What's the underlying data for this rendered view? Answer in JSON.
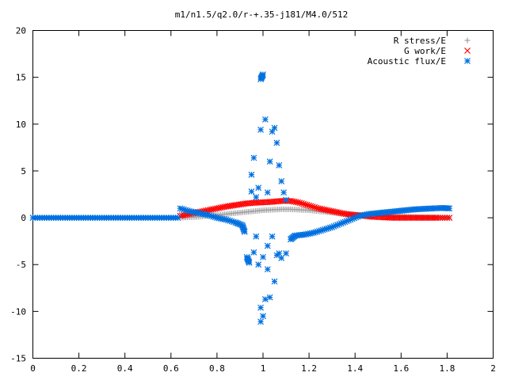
{
  "chart_data": {
    "type": "scatter",
    "title": "m1/n1.5/q2.0/r-+.35-j181/M4.0/512",
    "xlabel": "",
    "ylabel": "",
    "xlim": [
      0,
      2
    ],
    "ylim": [
      -15,
      20
    ],
    "x_ticks": [
      "0",
      "0.2",
      "0.4",
      "0.6",
      "0.8",
      "1",
      "1.2",
      "1.4",
      "1.6",
      "1.8",
      "2"
    ],
    "y_ticks": [
      "-15",
      "-10",
      "-5",
      "0",
      "5",
      "10",
      "15",
      "20"
    ],
    "legend_position": "top-right",
    "grid": false,
    "series": [
      {
        "name": "R stress/E",
        "marker": "plus",
        "color": "#a0a0a0",
        "points": [
          [
            0.64,
            0.0
          ],
          [
            0.68,
            0.05
          ],
          [
            0.72,
            0.1
          ],
          [
            0.76,
            0.2
          ],
          [
            0.8,
            0.3
          ],
          [
            0.84,
            0.4
          ],
          [
            0.88,
            0.5
          ],
          [
            0.92,
            0.6
          ],
          [
            0.96,
            0.7
          ],
          [
            1.0,
            0.8
          ],
          [
            1.04,
            0.85
          ],
          [
            1.08,
            0.9
          ],
          [
            1.12,
            0.9
          ],
          [
            1.16,
            0.85
          ],
          [
            1.2,
            0.8
          ],
          [
            1.24,
            0.7
          ],
          [
            1.28,
            0.6
          ],
          [
            1.32,
            0.5
          ],
          [
            1.36,
            0.4
          ],
          [
            1.4,
            0.3
          ],
          [
            1.44,
            0.3
          ],
          [
            1.48,
            0.3
          ],
          [
            1.52,
            0.25
          ],
          [
            1.56,
            0.2
          ],
          [
            1.6,
            0.15
          ],
          [
            1.64,
            0.1
          ],
          [
            1.68,
            0.05
          ],
          [
            1.72,
            0.02
          ],
          [
            1.76,
            0.0
          ],
          [
            1.81,
            0.0
          ]
        ]
      },
      {
        "name": "G work/E",
        "marker": "cross",
        "color": "#ff0000",
        "points": [
          [
            0.64,
            0.2
          ],
          [
            0.68,
            0.4
          ],
          [
            0.72,
            0.6
          ],
          [
            0.76,
            0.8
          ],
          [
            0.8,
            1.0
          ],
          [
            0.84,
            1.2
          ],
          [
            0.88,
            1.35
          ],
          [
            0.92,
            1.5
          ],
          [
            0.96,
            1.6
          ],
          [
            1.0,
            1.65
          ],
          [
            1.04,
            1.7
          ],
          [
            1.08,
            1.8
          ],
          [
            1.12,
            1.8
          ],
          [
            1.16,
            1.6
          ],
          [
            1.2,
            1.3
          ],
          [
            1.24,
            1.0
          ],
          [
            1.28,
            0.8
          ],
          [
            1.32,
            0.6
          ],
          [
            1.36,
            0.4
          ],
          [
            1.4,
            0.3
          ],
          [
            1.44,
            0.2
          ],
          [
            1.48,
            0.1
          ],
          [
            1.52,
            0.05
          ],
          [
            1.56,
            0.0
          ],
          [
            1.6,
            0.0
          ],
          [
            1.64,
            0.0
          ],
          [
            1.68,
            0.0
          ],
          [
            1.72,
            0.0
          ],
          [
            1.76,
            0.0
          ],
          [
            1.81,
            0.0
          ]
        ]
      },
      {
        "name": "Acoustic flux/E",
        "marker": "star",
        "color": "#0070e0",
        "points": [
          [
            0.64,
            1.0
          ],
          [
            0.68,
            0.7
          ],
          [
            0.72,
            0.5
          ],
          [
            0.76,
            0.3
          ],
          [
            0.8,
            0.0
          ],
          [
            0.84,
            -0.2
          ],
          [
            0.88,
            -0.5
          ],
          [
            0.91,
            -0.8
          ],
          [
            0.92,
            -1.5
          ],
          [
            0.93,
            -4.2
          ],
          [
            0.94,
            -4.8
          ],
          [
            0.95,
            2.8
          ],
          [
            0.95,
            4.6
          ],
          [
            0.96,
            6.4
          ],
          [
            0.96,
            -3.7
          ],
          [
            0.97,
            2.2
          ],
          [
            0.97,
            -2.0
          ],
          [
            0.98,
            3.2
          ],
          [
            0.98,
            -5.0
          ],
          [
            0.99,
            9.4
          ],
          [
            0.99,
            -9.6
          ],
          [
            0.99,
            -11.1
          ],
          [
            0.99,
            14.8
          ],
          [
            1.0,
            15.3
          ],
          [
            1.0,
            -10.5
          ],
          [
            1.0,
            -4.2
          ],
          [
            1.01,
            10.5
          ],
          [
            1.01,
            -8.7
          ],
          [
            1.02,
            2.7
          ],
          [
            1.02,
            -3.0
          ],
          [
            1.02,
            -5.5
          ],
          [
            1.03,
            6.0
          ],
          [
            1.03,
            -8.5
          ],
          [
            1.04,
            9.2
          ],
          [
            1.04,
            -2.0
          ],
          [
            1.05,
            9.6
          ],
          [
            1.05,
            -6.8
          ],
          [
            1.06,
            8.0
          ],
          [
            1.06,
            -4.0
          ],
          [
            1.07,
            5.6
          ],
          [
            1.07,
            -3.8
          ],
          [
            1.08,
            3.9
          ],
          [
            1.08,
            -4.3
          ],
          [
            1.09,
            2.7
          ],
          [
            1.1,
            -3.8
          ],
          [
            1.1,
            1.9
          ],
          [
            1.12,
            -2.3
          ],
          [
            1.14,
            -1.9
          ],
          [
            1.18,
            -1.8
          ],
          [
            1.22,
            -1.6
          ],
          [
            1.26,
            -1.3
          ],
          [
            1.3,
            -1.0
          ],
          [
            1.34,
            -0.6
          ],
          [
            1.38,
            -0.2
          ],
          [
            1.42,
            0.2
          ],
          [
            1.46,
            0.4
          ],
          [
            1.5,
            0.5
          ],
          [
            1.54,
            0.6
          ],
          [
            1.58,
            0.7
          ],
          [
            1.62,
            0.8
          ],
          [
            1.66,
            0.9
          ],
          [
            1.7,
            0.95
          ],
          [
            1.74,
            1.0
          ],
          [
            1.78,
            1.05
          ],
          [
            1.81,
            1.0
          ]
        ]
      }
    ]
  }
}
